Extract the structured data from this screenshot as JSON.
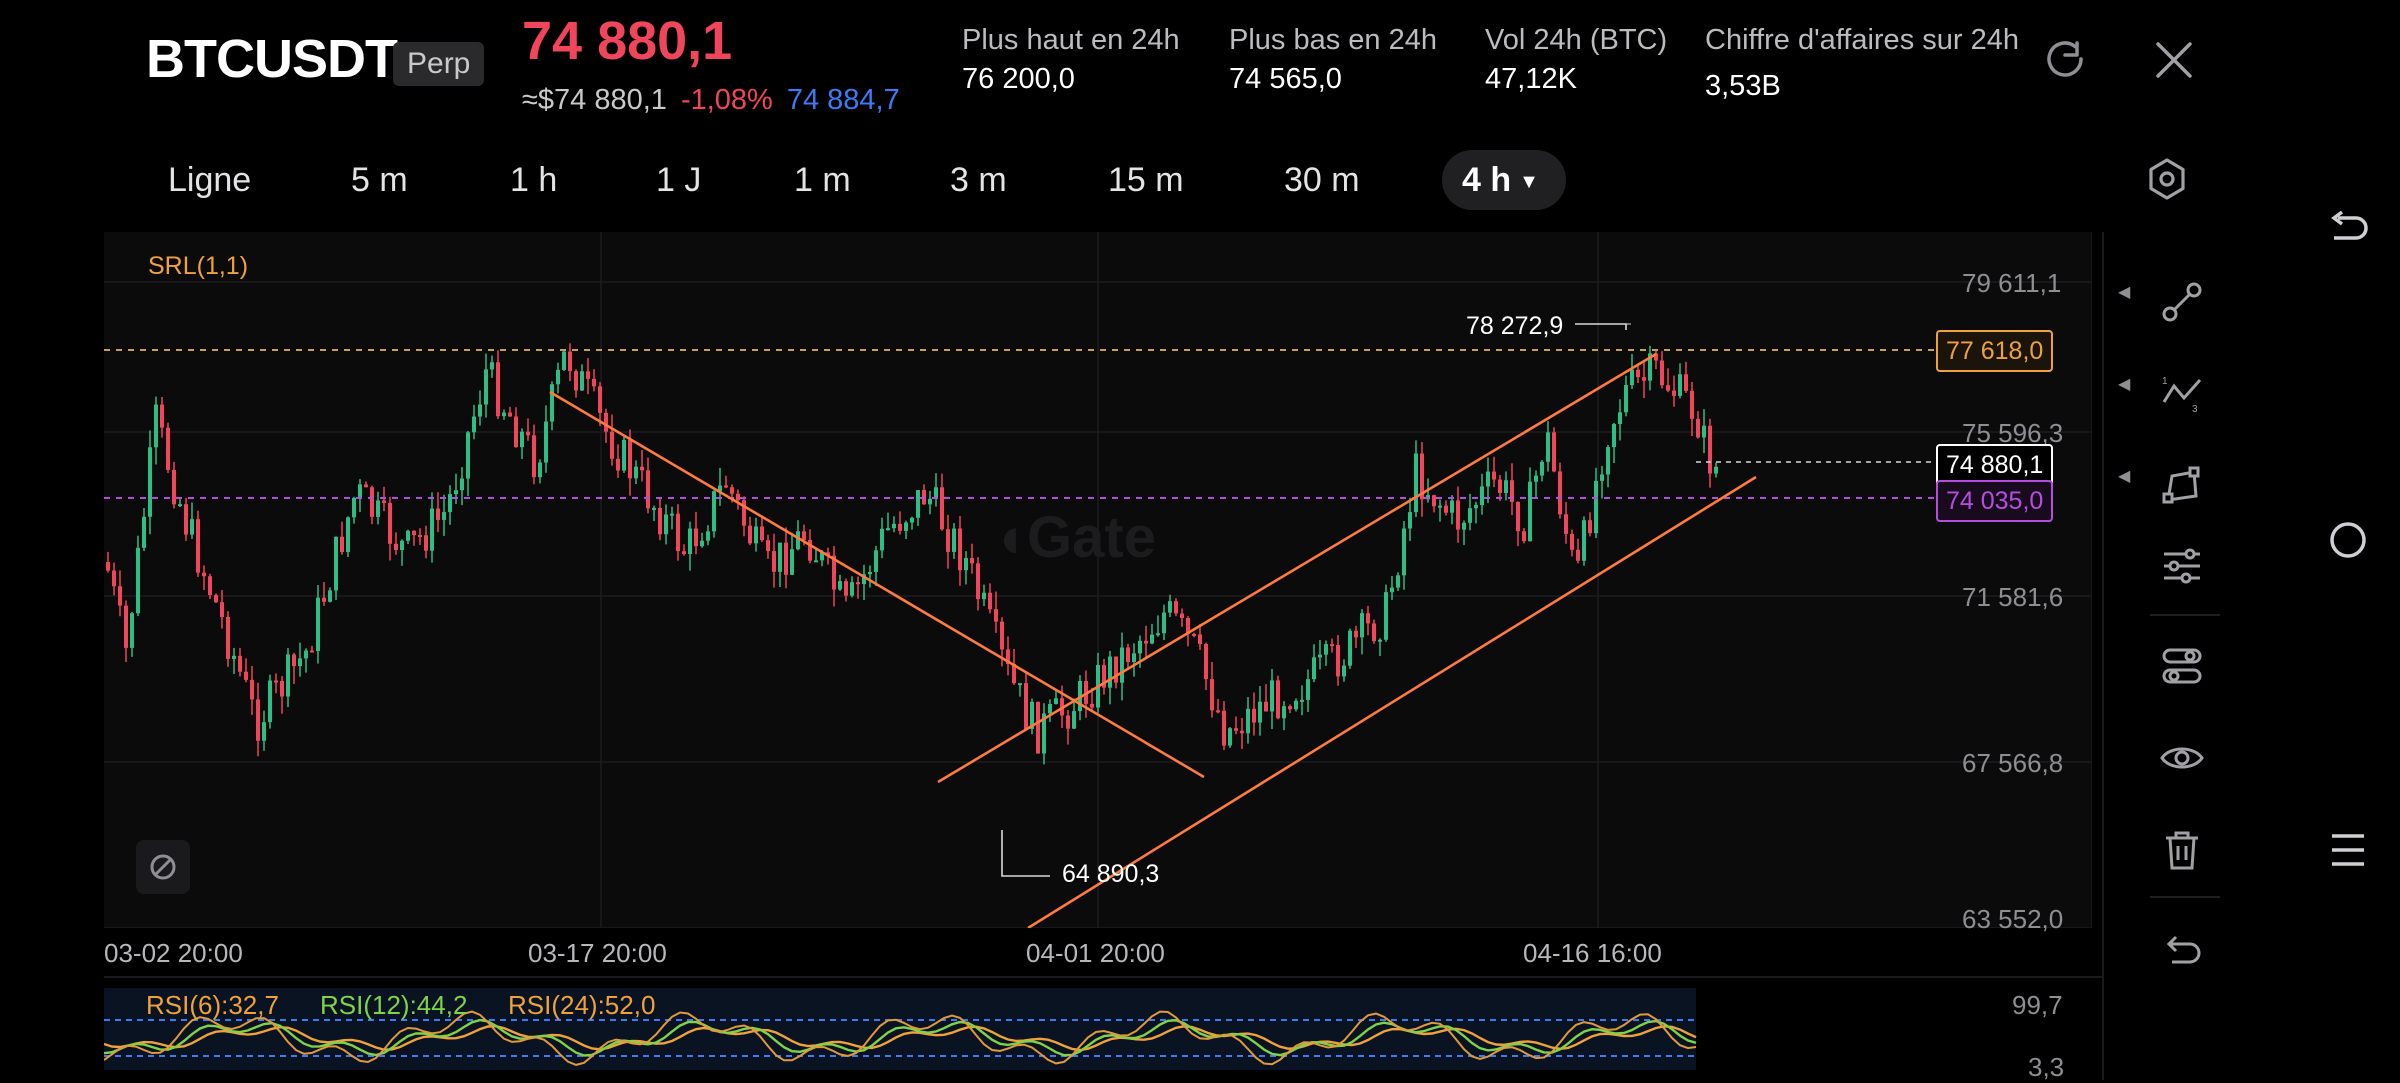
{
  "header": {
    "symbol": "BTCUSDT",
    "badge": "Perp",
    "last_price": "74 880,1",
    "index_price": "≈$74 880,1",
    "change_pct": "-1,08%",
    "mark_price": "74 884,7",
    "stats": [
      {
        "label": "Plus haut en 24h",
        "value": "76 200,0"
      },
      {
        "label": "Plus bas en 24h",
        "value": "74 565,0"
      },
      {
        "label": "Vol 24h (BTC)",
        "value": "47,12K"
      },
      {
        "label": "Chiffre d'affaires sur 24h",
        "value": "3,53B"
      }
    ]
  },
  "timeframes": [
    "Ligne",
    "5 m",
    "1 h",
    "1 J",
    "1 m",
    "3 m",
    "15 m",
    "30 m",
    "4 h"
  ],
  "active_timeframe": "4 h",
  "indicator_label": "SRL(1,1)",
  "watermark": "Gate",
  "price_axis": [
    "79 611,1",
    "75 596,3",
    "71 581,6",
    "67 566,8",
    "63 552,0"
  ],
  "time_axis": [
    "03-02 20:00",
    "03-17 20:00",
    "04-01 20:00",
    "04-16 16:00"
  ],
  "tags": {
    "srl_upper": "77 618,0",
    "current": "74 880,1",
    "srl_lower": "74 035,0"
  },
  "annotations": {
    "high": "78 272,9",
    "low": "64 890,3"
  },
  "rsi": {
    "rsi6": "RSI(6):32,7",
    "rsi12": "RSI(12):44,2",
    "rsi24": "RSI(24):52,0",
    "axis_top": "99,7",
    "axis_bottom": "3,3"
  },
  "colors": {
    "up": "#2ebd85",
    "down": "#f0455b",
    "accent_orange": "#ff7a3d",
    "srl_purple": "#b64ce0",
    "mark_blue": "#3b7bf6"
  },
  "icons": {
    "refresh": "refresh-icon",
    "close": "close-icon",
    "settings": "hexagon-settings-icon",
    "tools": [
      "line-tool-icon",
      "fib-tool-icon",
      "shape-tool-icon",
      "sliders-icon",
      "toggle-settings-icon",
      "eye-icon",
      "trash-icon",
      "undo-icon"
    ],
    "system_nav": [
      "back-icon",
      "home-icon",
      "menu-icon"
    ]
  }
}
